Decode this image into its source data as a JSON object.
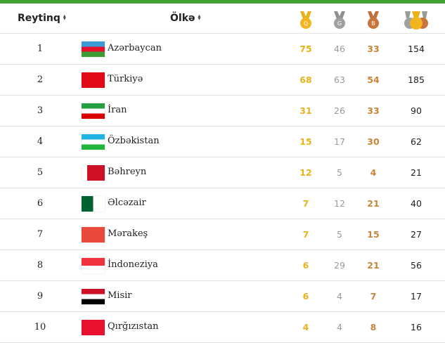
{
  "colors": {
    "accent": "#43a234",
    "gold": "#e8b21c",
    "silver": "#9a9a9a",
    "bronze": "#c8843a"
  },
  "header": {
    "rank_label": "Reytinq",
    "country_label": "Ölkə",
    "sort_icon": "sort-icon",
    "gold_letter": "Q",
    "silver_letter": "G",
    "bronze_letter": "B"
  },
  "rows": [
    {
      "rank": "1",
      "country": "Azərbaycan",
      "gold": "75",
      "silver": "46",
      "bronze": "33",
      "total": "154",
      "flag": [
        "#3a9bd5",
        "#e8112d",
        "#3f9c35"
      ]
    },
    {
      "rank": "2",
      "country": "Türkiyə",
      "gold": "68",
      "silver": "63",
      "bronze": "54",
      "total": "185",
      "flag": [
        "#e30a17"
      ]
    },
    {
      "rank": "3",
      "country": "İran",
      "gold": "31",
      "silver": "26",
      "bronze": "33",
      "total": "90",
      "flag": [
        "#239f40",
        "#ffffff",
        "#da0000"
      ]
    },
    {
      "rank": "4",
      "country": "Özbəkistan",
      "gold": "15",
      "silver": "17",
      "bronze": "30",
      "total": "62",
      "flag": [
        "#1eb5e6",
        "#ffffff",
        "#1eb53a"
      ]
    },
    {
      "rank": "5",
      "country": "Bəhreyn",
      "gold": "12",
      "silver": "5",
      "bronze": "4",
      "total": "21",
      "flag": [
        "#ce1126"
      ]
    },
    {
      "rank": "6",
      "country": "Əlcəzair",
      "gold": "7",
      "silver": "12",
      "bronze": "21",
      "total": "40",
      "flag": [
        "#006233"
      ]
    },
    {
      "rank": "7",
      "country": "Mərakeş",
      "gold": "7",
      "silver": "5",
      "bronze": "15",
      "total": "27",
      "flag": [
        "#e9493a"
      ]
    },
    {
      "rank": "8",
      "country": "İndoneziya",
      "gold": "6",
      "silver": "29",
      "bronze": "21",
      "total": "56",
      "flag": [
        "#f0333f",
        "#ffffff"
      ]
    },
    {
      "rank": "9",
      "country": "Misir",
      "gold": "6",
      "silver": "4",
      "bronze": "7",
      "total": "17",
      "flag": [
        "#ce1126",
        "#ffffff",
        "#000000"
      ]
    },
    {
      "rank": "10",
      "country": "Qırğızıstan",
      "gold": "4",
      "silver": "4",
      "bronze": "8",
      "total": "16",
      "flag": [
        "#e8112d"
      ]
    }
  ]
}
